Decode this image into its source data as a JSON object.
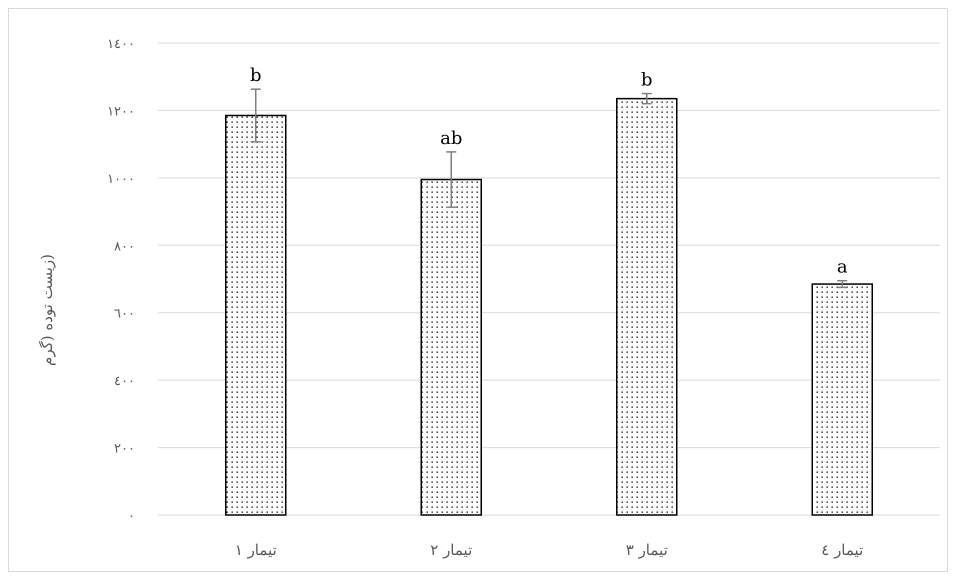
{
  "chart_data": {
    "type": "bar",
    "title": "",
    "xlabel": "",
    "ylabel": "(زیست توده (گرم",
    "ylim": [
      0,
      1400
    ],
    "yticks": [
      0,
      200,
      400,
      600,
      800,
      1000,
      1200,
      1400
    ],
    "ytick_labels": [
      "۰",
      "۲۰۰",
      "٤۰۰",
      "٦۰۰",
      "۸۰۰",
      "۱۰۰۰",
      "۱۲۰۰",
      "۱٤۰۰"
    ],
    "categories": [
      "تیمار ۱",
      "تیمار ۲",
      "تیمار ۳",
      "تیمار ٤"
    ],
    "values": [
      1185,
      995,
      1235,
      685
    ],
    "error": [
      78,
      82,
      15,
      10
    ],
    "significance_letters": [
      "b",
      "ab",
      "b",
      "a"
    ],
    "grid": true,
    "legend": "none",
    "colors": {
      "bar_fill": "#ffffff",
      "bar_dots": "#000000",
      "bar_edge": "#000000",
      "error_bar": "#7f7f7f",
      "grid": "#d9d9d9"
    }
  }
}
